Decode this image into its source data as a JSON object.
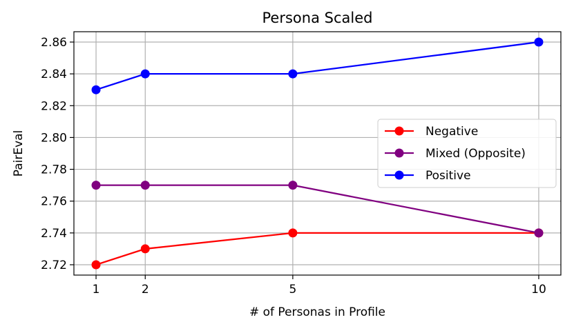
{
  "chart_data": {
    "type": "line",
    "title": "Persona Scaled",
    "xlabel": "# of Personas in Profile",
    "ylabel": "PairEval",
    "x": [
      1,
      2,
      5,
      10
    ],
    "x_ticks": [
      1,
      2,
      5,
      10
    ],
    "xlim": [
      0.55,
      10.45
    ],
    "ylim": [
      2.7135,
      2.8665
    ],
    "y_ticks": [
      2.72,
      2.74,
      2.76,
      2.78,
      2.8,
      2.82,
      2.84,
      2.86
    ],
    "grid": true,
    "legend_position": "center-right",
    "series": [
      {
        "name": "Negative",
        "color": "#ff0000",
        "values": [
          2.72,
          2.73,
          2.74,
          2.74
        ]
      },
      {
        "name": "Mixed (Opposite)",
        "color": "#800080",
        "values": [
          2.77,
          2.77,
          2.77,
          2.74
        ]
      },
      {
        "name": "Positive",
        "color": "#0000ff",
        "values": [
          2.83,
          2.84,
          2.84,
          2.86
        ]
      }
    ]
  }
}
